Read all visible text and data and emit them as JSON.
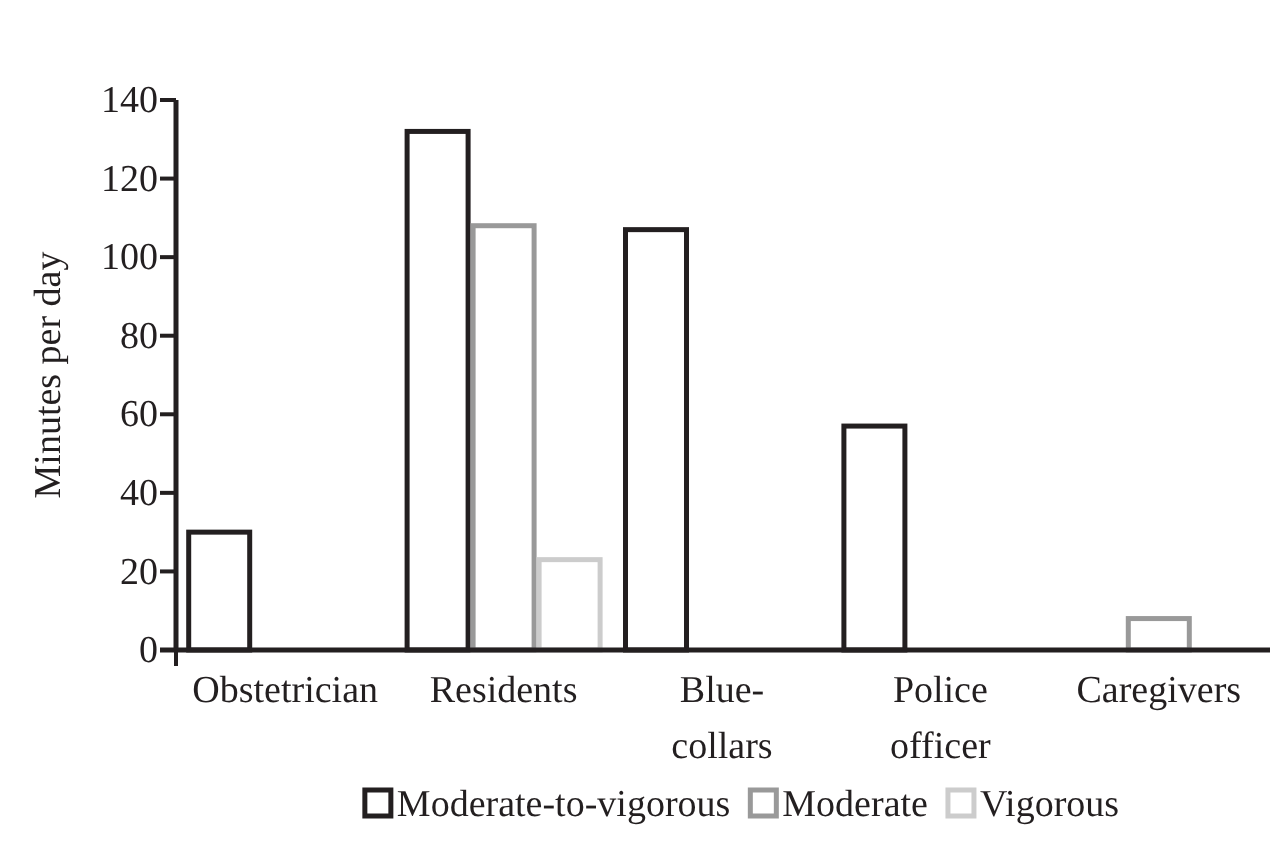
{
  "chart_data": {
    "type": "bar",
    "ylabel": "Minutes per day",
    "categories": [
      "Obstetrician",
      "Residents",
      "Blue-collars",
      "Police officer",
      "Caregivers"
    ],
    "series": [
      {
        "name": "Moderate-to-vigorous",
        "color": "#231f20",
        "values": [
          30,
          132,
          107,
          57,
          null
        ]
      },
      {
        "name": "Moderate",
        "color": "#999999",
        "values": [
          null,
          108,
          null,
          null,
          8
        ]
      },
      {
        "name": "Vigorous",
        "color": "#cccccc",
        "values": [
          null,
          23,
          null,
          null,
          null
        ]
      }
    ],
    "ylim": [
      0,
      140
    ],
    "yticks": [
      0,
      20,
      40,
      60,
      80,
      100,
      120,
      140
    ],
    "grid": false,
    "legend": "bottom"
  }
}
